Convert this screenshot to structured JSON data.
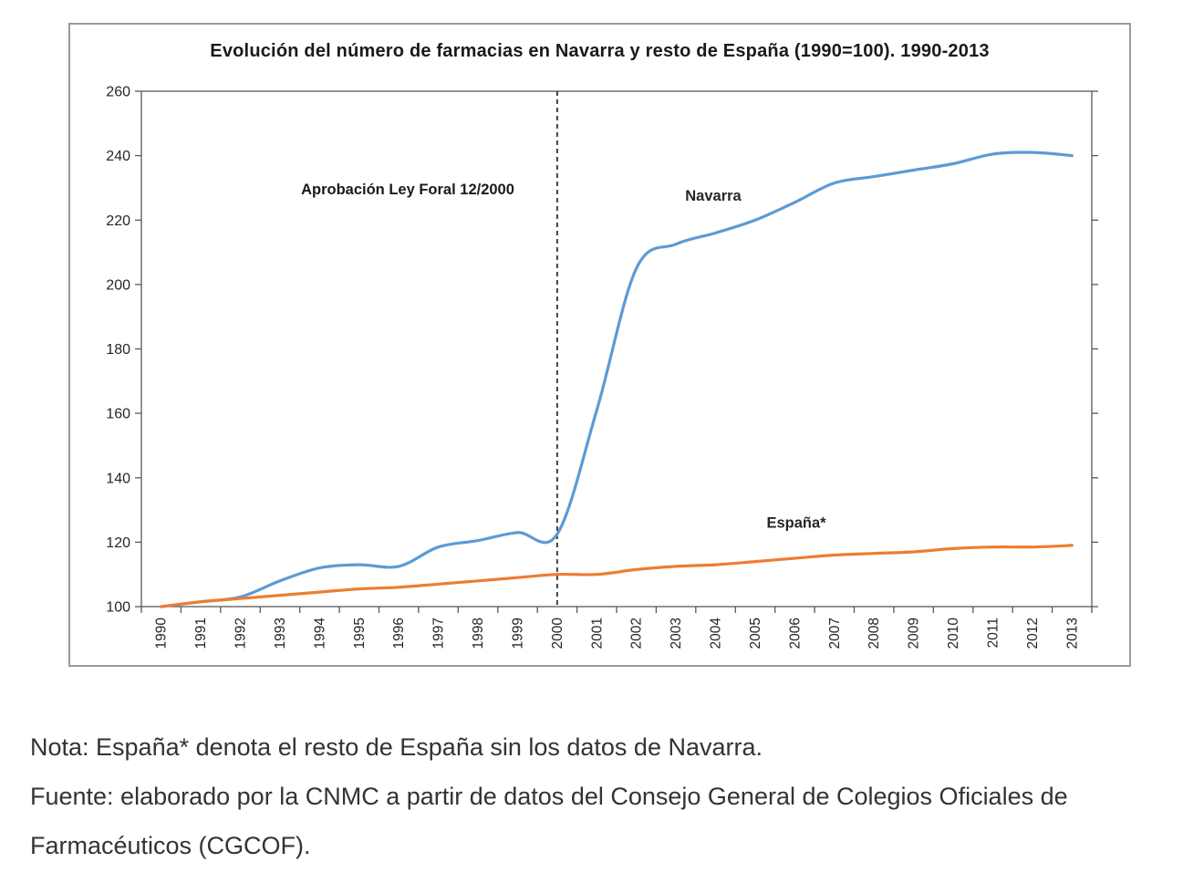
{
  "chart_data": {
    "type": "line",
    "title": "Evolución del número de farmacias en Navarra y resto de España (1990=100). 1990-2013",
    "x": [
      1990,
      1991,
      1992,
      1993,
      1994,
      1995,
      1996,
      1997,
      1998,
      1999,
      2000,
      2001,
      2002,
      2003,
      2004,
      2005,
      2006,
      2007,
      2008,
      2009,
      2010,
      2011,
      2012,
      2013
    ],
    "series": [
      {
        "name": "Navarra",
        "color": "#5B9BD5",
        "values": [
          100,
          101.5,
          103,
          108,
          112,
          113,
          112.5,
          118.5,
          120.5,
          123,
          122.5,
          161,
          205,
          212.5,
          216,
          220,
          225.5,
          231.5,
          233.5,
          235.5,
          237.5,
          240.5,
          241,
          240
        ]
      },
      {
        "name": "España*",
        "color": "#ED7D31",
        "values": [
          100,
          101.5,
          102.5,
          103.5,
          104.5,
          105.5,
          106,
          107,
          108,
          109,
          110,
          110,
          111.5,
          112.5,
          113,
          114,
          115,
          116,
          116.5,
          117,
          118,
          118.5,
          118.5,
          119
        ]
      }
    ],
    "ylim": [
      100,
      260
    ],
    "ytick_step": 20,
    "xlabel": "",
    "ylabel": "",
    "grid": "off",
    "legend": "inline-labels",
    "annotation": {
      "text": "Aprobación Ley Foral 12/2000",
      "year": 2000
    }
  },
  "notes": {
    "nota": "Nota: España* denota el resto de España sin los datos de Navarra.",
    "fuente": "Fuente: elaborado por la CNMC a partir de datos del Consejo General de Colegios Oficiales de Farmacéuticos (CGCOF)."
  }
}
